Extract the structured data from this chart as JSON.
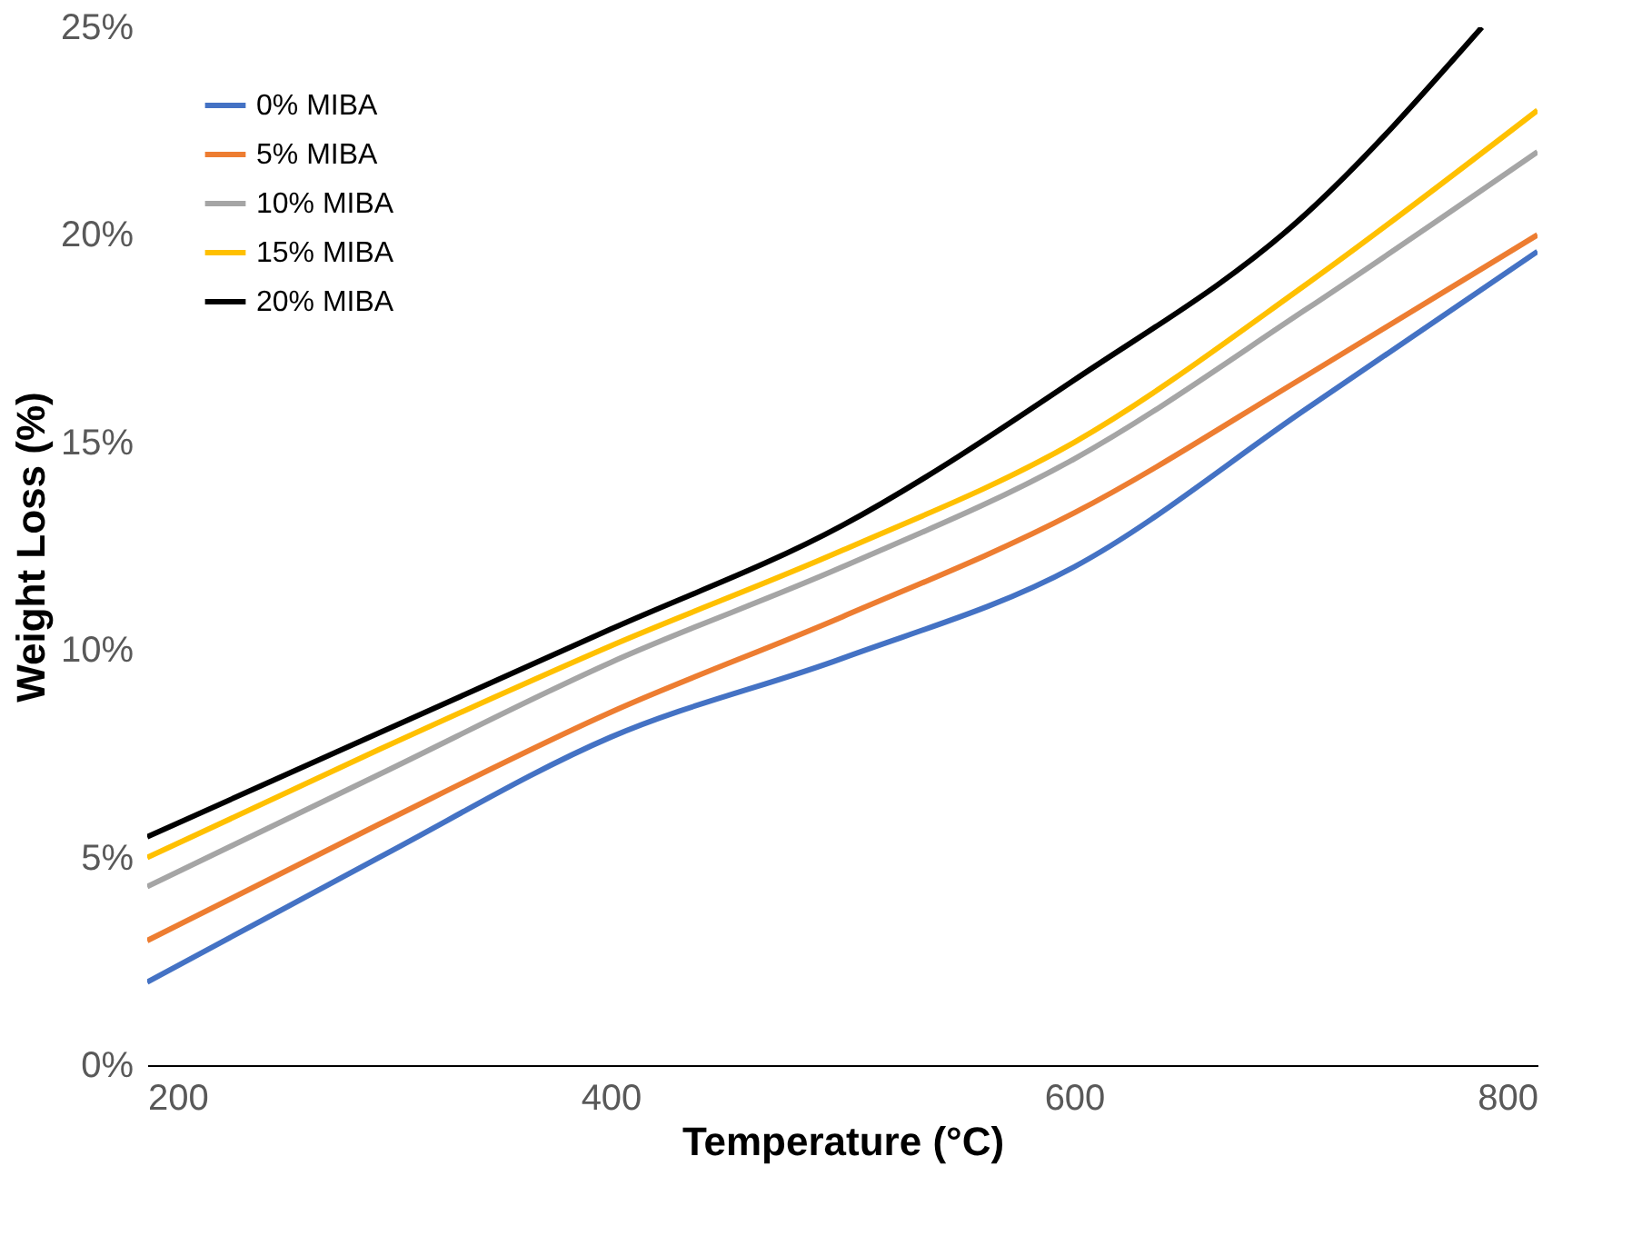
{
  "chart_data": {
    "type": "line",
    "xlabel": "Temperature (°C)",
    "ylabel": "Weight Loss (%)",
    "x": [
      200,
      300,
      400,
      500,
      600,
      700,
      800
    ],
    "series": [
      {
        "name": "0% MIBA",
        "color": "#4472c4",
        "values": [
          2.0,
          5.0,
          7.9,
          9.8,
          12.0,
          15.8,
          19.6
        ]
      },
      {
        "name": "5% MIBA",
        "color": "#ed7d31",
        "values": [
          3.0,
          5.8,
          8.5,
          10.8,
          13.3,
          16.6,
          20.0
        ]
      },
      {
        "name": "10% MIBA",
        "color": "#a5a5a5",
        "values": [
          4.3,
          7.0,
          9.7,
          12.0,
          14.6,
          18.2,
          22.0
        ]
      },
      {
        "name": "15% MIBA",
        "color": "#ffc000",
        "values": [
          5.0,
          7.6,
          10.1,
          12.4,
          15.0,
          18.8,
          23.0
        ]
      },
      {
        "name": "20% MIBA",
        "color": "#000000",
        "x": [
          200,
          300,
          400,
          500,
          600,
          700,
          776
        ],
        "values": [
          5.5,
          8.0,
          10.5,
          13.0,
          16.5,
          20.5,
          25.0
        ]
      }
    ],
    "xlim": [
      200,
      800
    ],
    "xticks": [
      200,
      400,
      600,
      800
    ],
    "ylim": [
      0,
      25
    ],
    "yticks": [
      {
        "value": 0,
        "label": "0%"
      },
      {
        "value": 5,
        "label": "5%"
      },
      {
        "value": 10,
        "label": "10%"
      },
      {
        "value": 15,
        "label": "15%"
      },
      {
        "value": 20,
        "label": "20%"
      },
      {
        "value": 25,
        "label": "25%"
      }
    ],
    "grid": false,
    "legend": "top left",
    "marker": "none",
    "line_style": "solid"
  }
}
